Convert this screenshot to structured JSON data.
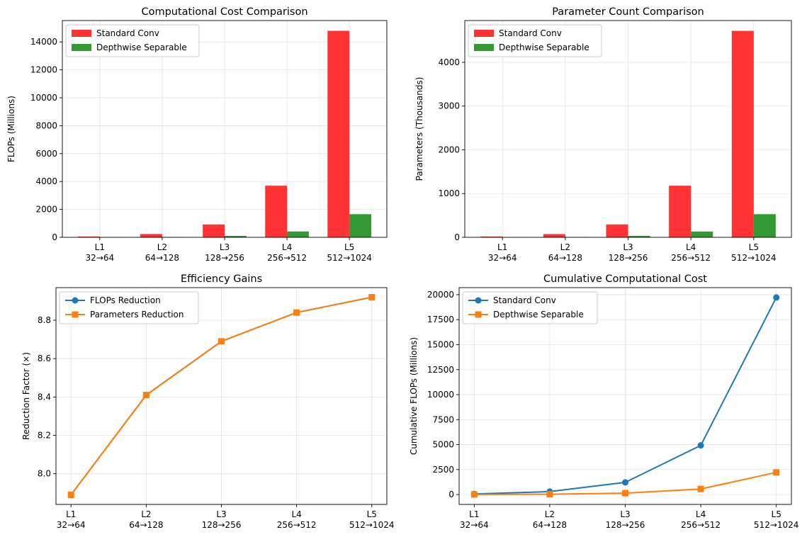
{
  "chart_data": [
    {
      "type": "bar",
      "title": "Computational Cost Comparison",
      "xlabel": "",
      "ylabel": "FLOPs (Millions)",
      "categories": [
        [
          "L1",
          "32→64"
        ],
        [
          "L2",
          "64→128"
        ],
        [
          "L3",
          "128→256"
        ],
        [
          "L4",
          "256→512"
        ],
        [
          "L5",
          "512→1024"
        ]
      ],
      "series": [
        {
          "name": "Standard Conv",
          "color": "#ff3333",
          "values": [
            59,
            236,
            925,
            3700,
            14800
          ]
        },
        {
          "name": "Depthwise Separable",
          "color": "#339933",
          "values": [
            7.5,
            28,
            106,
            418,
            1659
          ]
        }
      ],
      "ylim": [
        0,
        15535
      ],
      "yticks": [
        0,
        2000,
        4000,
        6000,
        8000,
        10000,
        12000,
        14000
      ],
      "grid": true,
      "legend": "upper-left"
    },
    {
      "type": "bar",
      "title": "Parameter Count Comparison",
      "xlabel": "",
      "ylabel": "Parameters (Thousands)",
      "categories": [
        [
          "L1",
          "32→64"
        ],
        [
          "L2",
          "64→128"
        ],
        [
          "L3",
          "128→256"
        ],
        [
          "L4",
          "256→512"
        ],
        [
          "L5",
          "512→1024"
        ]
      ],
      "series": [
        {
          "name": "Standard Conv",
          "color": "#ff3333",
          "values": [
            18.4,
            73.7,
            295,
            1180,
            4719
          ]
        },
        {
          "name": "Depthwise Separable",
          "color": "#339933",
          "values": [
            2.3,
            8.8,
            34,
            133,
            529
          ]
        }
      ],
      "ylim": [
        0,
        4955
      ],
      "yticks": [
        0,
        1000,
        2000,
        3000,
        4000
      ],
      "grid": true,
      "legend": "upper-left"
    },
    {
      "type": "line",
      "title": "Efficiency Gains",
      "xlabel": "",
      "ylabel": "Reduction Factor (×)",
      "categories": [
        [
          "L1",
          "32→64"
        ],
        [
          "L2",
          "64→128"
        ],
        [
          "L3",
          "128→256"
        ],
        [
          "L4",
          "256→512"
        ],
        [
          "L5",
          "512→1024"
        ]
      ],
      "series": [
        {
          "name": "FLOPs Reduction",
          "color": "#1f77b4",
          "marker": "circle",
          "values": [
            7.89,
            8.41,
            8.69,
            8.84,
            8.92
          ]
        },
        {
          "name": "Parameters Reduction",
          "color": "#ff7f0e",
          "marker": "square",
          "values": [
            7.89,
            8.41,
            8.69,
            8.84,
            8.92
          ]
        }
      ],
      "ylim": [
        7.84,
        8.97
      ],
      "yticks": [
        "8.0",
        "8.2",
        "8.4",
        "8.6",
        "8.8"
      ],
      "grid": true,
      "legend": "upper-left"
    },
    {
      "type": "line",
      "title": "Cumulative Computational Cost",
      "xlabel": "",
      "ylabel": "Cumulative FLOPs (Millions)",
      "categories": [
        [
          "L1",
          "32→64"
        ],
        [
          "L2",
          "64→128"
        ],
        [
          "L3",
          "128→256"
        ],
        [
          "L4",
          "256→512"
        ],
        [
          "L5",
          "512→1024"
        ]
      ],
      "series": [
        {
          "name": "Standard Conv",
          "color": "#1f77b4",
          "marker": "circle",
          "values": [
            59,
            295,
            1220,
            4920,
            19720
          ]
        },
        {
          "name": "Depthwise Separable",
          "color": "#ff7f0e",
          "marker": "square",
          "values": [
            7.5,
            35,
            141,
            559,
            2218
          ]
        }
      ],
      "ylim": [
        -986,
        20706
      ],
      "yticks": [
        0,
        2500,
        5000,
        7500,
        10000,
        12500,
        15000,
        17500,
        20000
      ],
      "grid": true,
      "legend": "upper-left"
    }
  ]
}
